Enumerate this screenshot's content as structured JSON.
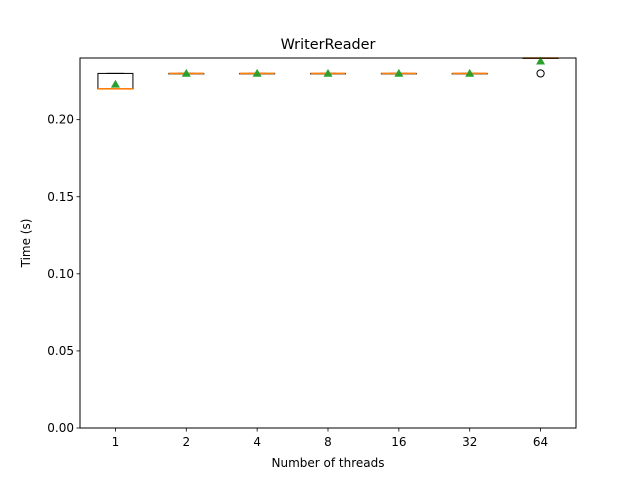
{
  "chart_data": {
    "type": "box",
    "title": "WriterReader",
    "xlabel": "Number of threads",
    "ylabel": "Time (s)",
    "categories": [
      "1",
      "2",
      "4",
      "8",
      "16",
      "32",
      "64"
    ],
    "ylim": [
      0.0,
      0.24
    ],
    "yticks": [
      0.0,
      0.05,
      0.1,
      0.15,
      0.2
    ],
    "ytick_labels": [
      "0.00",
      "0.05",
      "0.10",
      "0.15",
      "0.20"
    ],
    "grid": false,
    "boxes": [
      {
        "category": "1",
        "q1": 0.22,
        "median": 0.22,
        "q3": 0.23,
        "whisker_low": 0.22,
        "whisker_high": 0.23,
        "mean": 0.223,
        "outliers": []
      },
      {
        "category": "2",
        "q1": 0.23,
        "median": 0.23,
        "q3": 0.23,
        "whisker_low": 0.23,
        "whisker_high": 0.23,
        "mean": 0.23,
        "outliers": []
      },
      {
        "category": "4",
        "q1": 0.23,
        "median": 0.23,
        "q3": 0.23,
        "whisker_low": 0.23,
        "whisker_high": 0.23,
        "mean": 0.23,
        "outliers": []
      },
      {
        "category": "8",
        "q1": 0.23,
        "median": 0.23,
        "q3": 0.23,
        "whisker_low": 0.23,
        "whisker_high": 0.23,
        "mean": 0.23,
        "outliers": []
      },
      {
        "category": "16",
        "q1": 0.23,
        "median": 0.23,
        "q3": 0.23,
        "whisker_low": 0.23,
        "whisker_high": 0.23,
        "mean": 0.23,
        "outliers": []
      },
      {
        "category": "32",
        "q1": 0.23,
        "median": 0.23,
        "q3": 0.23,
        "whisker_low": 0.23,
        "whisker_high": 0.23,
        "mean": 0.23,
        "outliers": []
      },
      {
        "category": "64",
        "q1": 0.24,
        "median": 0.24,
        "q3": 0.24,
        "whisker_low": 0.24,
        "whisker_high": 0.24,
        "mean": 0.238,
        "outliers": [
          0.23
        ]
      }
    ],
    "colors": {
      "box": "#000000",
      "median": "#ff7f0e",
      "mean": "#2ca02c",
      "outlier": "#000000"
    }
  }
}
